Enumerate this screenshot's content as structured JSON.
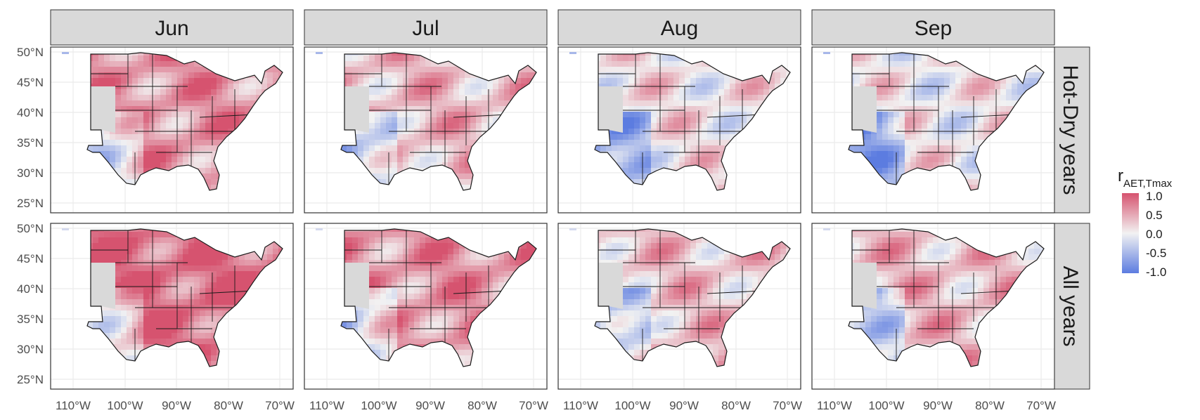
{
  "months": [
    "Jun",
    "Jul",
    "Aug",
    "Sep"
  ],
  "rows": [
    "Hot-Dry years",
    "All years"
  ],
  "x_ticks": [
    "110°W",
    "100°W",
    "90°W",
    "80°W",
    "70°W"
  ],
  "y_ticks": [
    "50°N",
    "45°N",
    "40°N",
    "35°N",
    "30°N",
    "25°N"
  ],
  "legend": {
    "title_main": "r",
    "title_sub": "AET,Tmax",
    "labels": [
      "1.0",
      "0.5",
      "0.0",
      "-0.5",
      "-1.0"
    ]
  },
  "colors": {
    "positive": "#d6536f",
    "neutral": "#f2f2f2",
    "negative": "#5c7ce0",
    "grid": "#ebebeb",
    "strip_bg": "#d9d9d9",
    "masked": "#d9d9d9",
    "outline": "#1a1a1a"
  },
  "panel_tone": {
    "Hot-Dry years": {
      "Jun": 0.6,
      "Jul": 0.35,
      "Aug": 0.1,
      "Sep": 0.05
    },
    "All years": {
      "Jun": 0.85,
      "Jul": 0.6,
      "Aug": 0.3,
      "Sep": 0.35
    }
  }
}
